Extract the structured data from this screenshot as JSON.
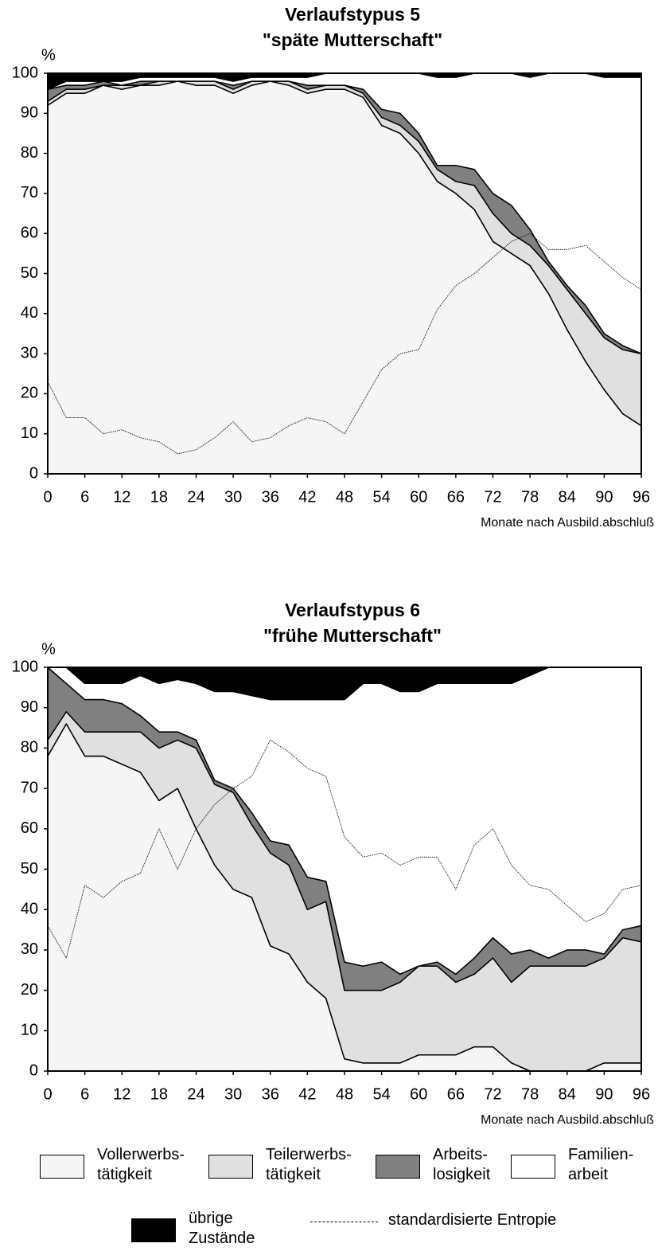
{
  "chart_data": [
    {
      "type": "area",
      "title": "Verlaufstypus 5",
      "subtitle": "\"späte Mutterschaft\"",
      "ylabel": "%",
      "xlabel": "Monate nach Ausbild.abschluß",
      "x": [
        0,
        3,
        6,
        9,
        12,
        15,
        18,
        21,
        24,
        27,
        30,
        33,
        36,
        39,
        42,
        45,
        48,
        51,
        54,
        57,
        60,
        63,
        66,
        69,
        72,
        75,
        78,
        81,
        84,
        87,
        90,
        93,
        96
      ],
      "xlim": [
        0,
        96
      ],
      "xticks": [
        0,
        6,
        12,
        18,
        24,
        30,
        36,
        42,
        48,
        54,
        60,
        66,
        72,
        78,
        84,
        90,
        96
      ],
      "ylim": [
        0,
        100
      ],
      "yticks": [
        0,
        10,
        20,
        30,
        40,
        50,
        60,
        70,
        80,
        90,
        100
      ],
      "series": [
        {
          "color": "#f5f5f5",
          "values": [
            92,
            95,
            95,
            97,
            96,
            97,
            97,
            98,
            97,
            97,
            95,
            97,
            98,
            97,
            95,
            96,
            96,
            94,
            87,
            85,
            80,
            73,
            70,
            66,
            58,
            55,
            52,
            45,
            36,
            28,
            21,
            15,
            12
          ]
        },
        {
          "color": "#e0e0e0",
          "values": [
            1,
            1,
            1,
            0,
            1,
            0,
            1,
            0,
            1,
            1,
            1,
            1,
            0,
            1,
            1,
            1,
            1,
            1,
            2,
            2,
            3,
            3,
            3,
            6,
            7,
            5,
            5,
            7,
            10,
            12,
            13,
            16,
            18
          ]
        },
        {
          "color": "#808080",
          "values": [
            3,
            1,
            1,
            1,
            0,
            1,
            0,
            0,
            0,
            0,
            1,
            0,
            0,
            0,
            1,
            0,
            0,
            1,
            2,
            3,
            2,
            1,
            4,
            4,
            5,
            7,
            4,
            1,
            1,
            2,
            1,
            1,
            0
          ]
        },
        {
          "color": "#ffffff",
          "values": [
            0,
            1,
            1,
            0,
            1,
            1,
            1,
            1,
            1,
            1,
            1,
            1,
            1,
            1,
            2,
            3,
            3,
            4,
            9,
            10,
            15,
            22,
            22,
            24,
            30,
            33,
            38,
            47,
            53,
            58,
            64,
            67,
            69
          ]
        },
        {
          "color": "#000000",
          "values": [
            4,
            2,
            2,
            2,
            2,
            1,
            1,
            1,
            1,
            1,
            2,
            1,
            1,
            1,
            1,
            0,
            0,
            0,
            0,
            0,
            0,
            1,
            1,
            0,
            0,
            0,
            1,
            0,
            0,
            0,
            1,
            1,
            1
          ]
        },
        {
          "color": "#000000",
          "style": "dashed",
          "values": [
            23,
            14,
            14,
            10,
            11,
            9,
            8,
            5,
            6,
            9,
            13,
            8,
            9,
            12,
            14,
            13,
            10,
            18,
            26,
            30,
            31,
            41,
            47,
            50,
            54,
            58,
            60,
            56,
            56,
            57,
            53,
            49,
            46
          ]
        }
      ]
    },
    {
      "type": "area",
      "title": "Verlaufstypus 6",
      "subtitle": "\"frühe Mutterschaft\"",
      "ylabel": "%",
      "xlabel": "Monate nach Ausbild.abschluß",
      "x": [
        0,
        3,
        6,
        9,
        12,
        15,
        18,
        21,
        24,
        27,
        30,
        33,
        36,
        39,
        42,
        45,
        48,
        51,
        54,
        57,
        60,
        63,
        66,
        69,
        72,
        75,
        78,
        81,
        84,
        87,
        90,
        93,
        96
      ],
      "xlim": [
        0,
        96
      ],
      "xticks": [
        0,
        6,
        12,
        18,
        24,
        30,
        36,
        42,
        48,
        54,
        60,
        66,
        72,
        78,
        84,
        90,
        96
      ],
      "ylim": [
        0,
        100
      ],
      "yticks": [
        0,
        10,
        20,
        30,
        40,
        50,
        60,
        70,
        80,
        90,
        100
      ],
      "series": [
        {
          "name": "Vollerwerbs-\ntätigkeit",
          "color": "#f5f5f5",
          "values": [
            78,
            86,
            78,
            78,
            76,
            74,
            67,
            70,
            60,
            51,
            45,
            43,
            31,
            29,
            22,
            18,
            3,
            2,
            2,
            2,
            4,
            4,
            4,
            6,
            6,
            2,
            0,
            0,
            0,
            0,
            2,
            2,
            2
          ]
        },
        {
          "name": "Teilerwerbs-\ntätigkeit",
          "color": "#e0e0e0",
          "values": [
            4,
            3,
            6,
            6,
            8,
            10,
            13,
            12,
            20,
            20,
            24,
            18,
            23,
            22,
            18,
            24,
            17,
            18,
            18,
            20,
            22,
            22,
            18,
            18,
            22,
            20,
            26,
            26,
            26,
            26,
            26,
            31,
            30
          ]
        },
        {
          "name": "Arbeits-\nlosigkeit",
          "color": "#808080",
          "values": [
            18,
            7,
            8,
            8,
            7,
            4,
            4,
            2,
            2,
            1,
            1,
            3,
            3,
            5,
            8,
            5,
            7,
            6,
            7,
            2,
            0,
            1,
            2,
            4,
            5,
            7,
            4,
            2,
            4,
            4,
            1,
            2,
            4
          ]
        },
        {
          "name": "Familien-\narbeit",
          "color": "#ffffff",
          "values": [
            0,
            4,
            4,
            4,
            5,
            10,
            12,
            13,
            14,
            22,
            24,
            29,
            35,
            36,
            44,
            45,
            65,
            70,
            69,
            70,
            68,
            69,
            72,
            68,
            63,
            67,
            68,
            72,
            70,
            70,
            71,
            65,
            64
          ]
        },
        {
          "name": "übrige\nZustände",
          "color": "#000000",
          "values": [
            0,
            0,
            4,
            4,
            4,
            2,
            4,
            3,
            4,
            6,
            6,
            7,
            8,
            8,
            8,
            8,
            8,
            4,
            4,
            6,
            6,
            4,
            4,
            4,
            4,
            4,
            2,
            0,
            0,
            0,
            0,
            0,
            0
          ]
        },
        {
          "name": "standardisierte Entropie",
          "color": "#000000",
          "style": "dashed",
          "values": [
            36,
            28,
            46,
            43,
            47,
            49,
            60,
            50,
            60,
            66,
            70,
            73,
            82,
            79,
            75,
            73,
            58,
            53,
            54,
            51,
            53,
            53,
            45,
            56,
            60,
            51,
            46,
            45,
            41,
            37,
            39,
            45,
            46
          ]
        }
      ]
    }
  ]
}
